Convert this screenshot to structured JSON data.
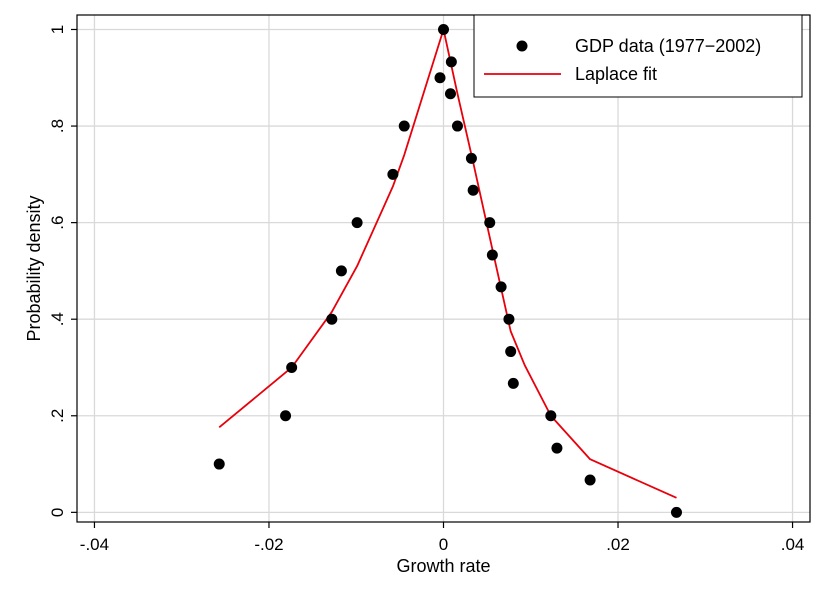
{
  "chart_data": {
    "type": "scatter",
    "xlabel": "Growth rate",
    "ylabel": "Probability density",
    "xlim": [
      -0.042,
      0.042
    ],
    "ylim": [
      -0.02,
      1.03
    ],
    "x_ticks": [
      -0.04,
      -0.02,
      0,
      0.02,
      0.04
    ],
    "x_tick_labels": [
      "-.04",
      "-.02",
      "0",
      ".02",
      ".04"
    ],
    "y_ticks": [
      0,
      0.2,
      0.4,
      0.6,
      0.8,
      1
    ],
    "y_tick_labels": [
      "0",
      ".2",
      ".4",
      ".6",
      ".8",
      "1"
    ],
    "grid": true,
    "legend_position": "top-right",
    "colors": {
      "points": "#000000",
      "fit": "#e8000b",
      "grid": "#d9d9d9"
    },
    "series": [
      {
        "name": "GDP data (1977−2002)",
        "kind": "scatter",
        "x": [
          -0.0257,
          -0.0181,
          -0.0174,
          -0.0128,
          -0.0117,
          -0.0099,
          -0.0058,
          -0.0045,
          -0.0004,
          0.0,
          0.0009,
          0.0008,
          0.0016,
          0.0032,
          0.0034,
          0.0053,
          0.0056,
          0.0066,
          0.0075,
          0.0077,
          0.008,
          0.0123,
          0.013,
          0.0168,
          0.0267
        ],
        "y": [
          0.1,
          0.2,
          0.3,
          0.4,
          0.5,
          0.6,
          0.7,
          0.8,
          0.9,
          1.0,
          0.933,
          0.867,
          0.8,
          0.733,
          0.667,
          0.6,
          0.533,
          0.467,
          0.4,
          0.333,
          0.267,
          0.2,
          0.133,
          0.067,
          0.0
        ]
      },
      {
        "name": "Laplace fit",
        "kind": "line",
        "x": [
          -0.0257,
          -0.0174,
          -0.0128,
          -0.0099,
          -0.0058,
          -0.0045,
          0.0,
          0.0016,
          0.0034,
          0.0056,
          0.0077,
          0.0093,
          0.0123,
          0.0168,
          0.0267
        ],
        "y": [
          0.176,
          0.3,
          0.415,
          0.51,
          0.675,
          0.74,
          1.0,
          0.867,
          0.725,
          0.545,
          0.375,
          0.305,
          0.2,
          0.11,
          0.03
        ]
      }
    ]
  }
}
